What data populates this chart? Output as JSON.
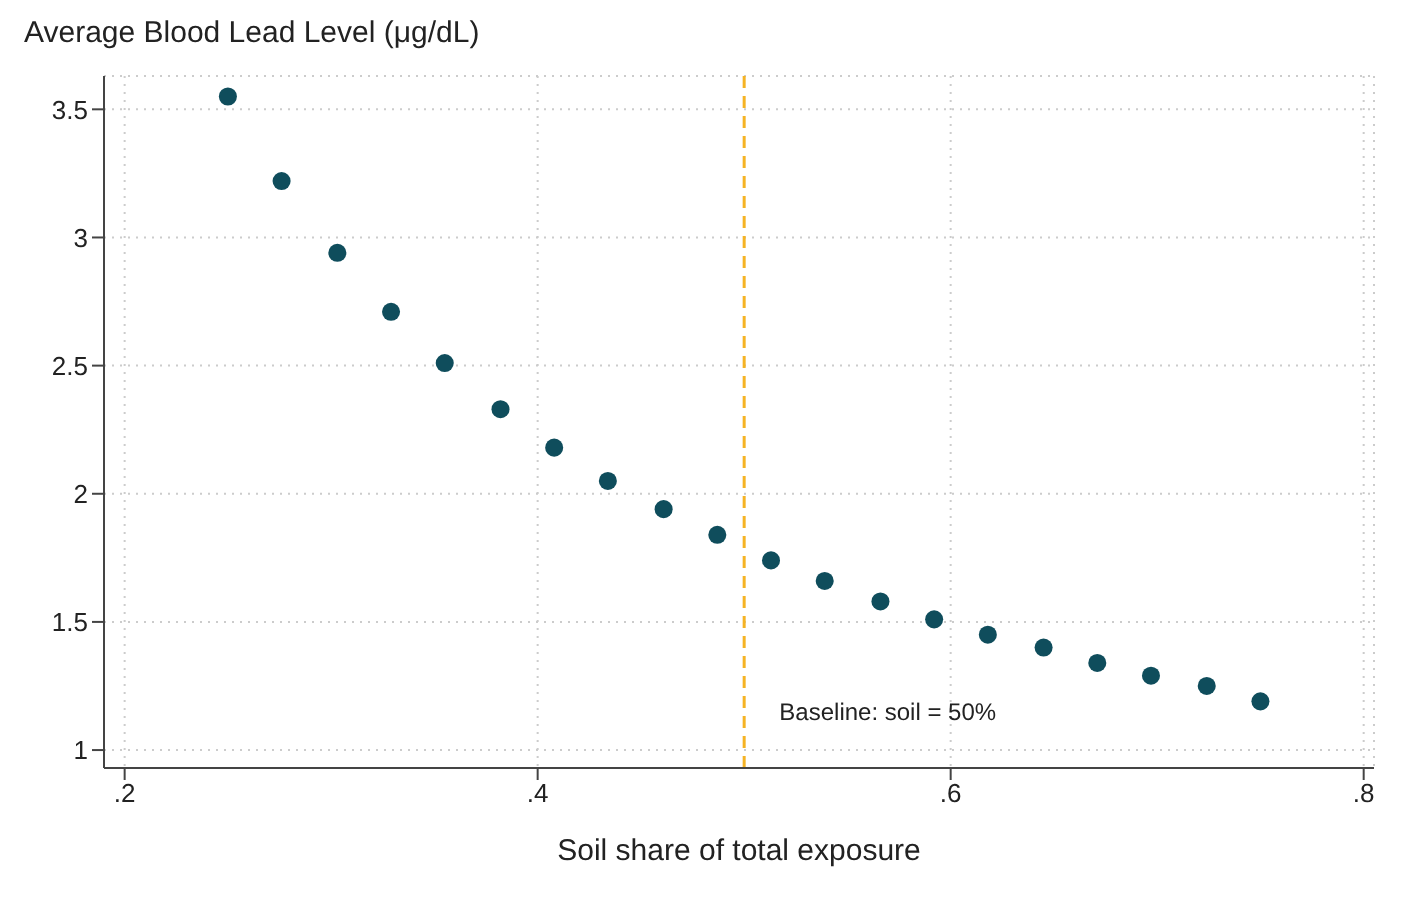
{
  "chart_data": {
    "type": "scatter",
    "title": "Average Blood Lead Level (μg/dL)",
    "xlabel": "Soil share of total exposure",
    "x": [
      0.25,
      0.276,
      0.303,
      0.329,
      0.355,
      0.382,
      0.408,
      0.434,
      0.461,
      0.487,
      0.513,
      0.539,
      0.566,
      0.592,
      0.618,
      0.645,
      0.671,
      0.697,
      0.724,
      0.75
    ],
    "series": [
      {
        "color": "#0f4d5c",
        "values": [
          3.55,
          3.22,
          2.94,
          2.71,
          2.51,
          2.33,
          2.18,
          2.05,
          1.94,
          1.84,
          1.74,
          1.66,
          1.58,
          1.51,
          1.45,
          1.4,
          1.34,
          1.29,
          1.25,
          1.19
        ]
      }
    ],
    "xlim": [
      0.19,
      0.805
    ],
    "ylim": [
      0.93,
      3.63
    ],
    "xticks": [
      {
        "value": 0.2,
        "label": ".2"
      },
      {
        "value": 0.4,
        "label": ".4"
      },
      {
        "value": 0.6,
        "label": ".6"
      },
      {
        "value": 0.8,
        "label": ".8"
      }
    ],
    "yticks": [
      1,
      1.5,
      2,
      2.5,
      3,
      3.5
    ],
    "grid": true,
    "marker": "circle",
    "ref_lines": [
      {
        "axis": "x",
        "value": 0.5,
        "label": "Baseline: soil = 50%",
        "color": "#f5b324",
        "line_style": "dashed"
      }
    ]
  }
}
